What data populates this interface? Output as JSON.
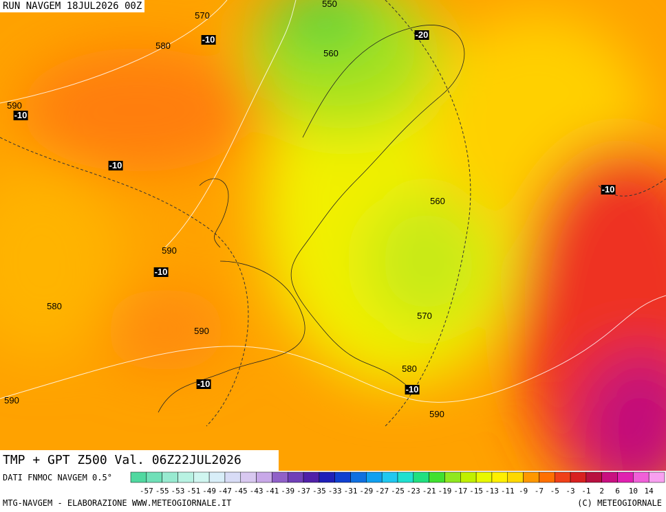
{
  "header": {
    "run": "RUN NAVGEM 18JUL2026 00Z"
  },
  "contour_labels": [
    "550",
    "570",
    "-10",
    "580",
    "560",
    "-20",
    "590",
    "-10",
    "-10",
    "-10",
    "560",
    "590",
    "-10",
    "580",
    "570",
    "590",
    "580",
    "-10",
    "-10",
    "590",
    "590"
  ],
  "title": "TMP + GPT Z500 Val. 06Z22JUL2026",
  "legend": {
    "source": "DATI FNMOC NAVGEM 0.5°",
    "scale": [
      -57,
      -55,
      -53,
      -51,
      -49,
      -47,
      -45,
      -43,
      -41,
      -39,
      -37,
      -35,
      -33,
      -31,
      -29,
      -27,
      -25,
      -23,
      -21,
      -19,
      -17,
      -15,
      -13,
      -11,
      -9,
      -7,
      -5,
      -3,
      -1,
      2,
      6,
      10,
      14
    ]
  },
  "footer": {
    "left": "MTG-NAVGEM - ELABORAZIONE WWW.METEOGIORNALE.IT",
    "right": "(C) METEOGIORNALE"
  }
}
